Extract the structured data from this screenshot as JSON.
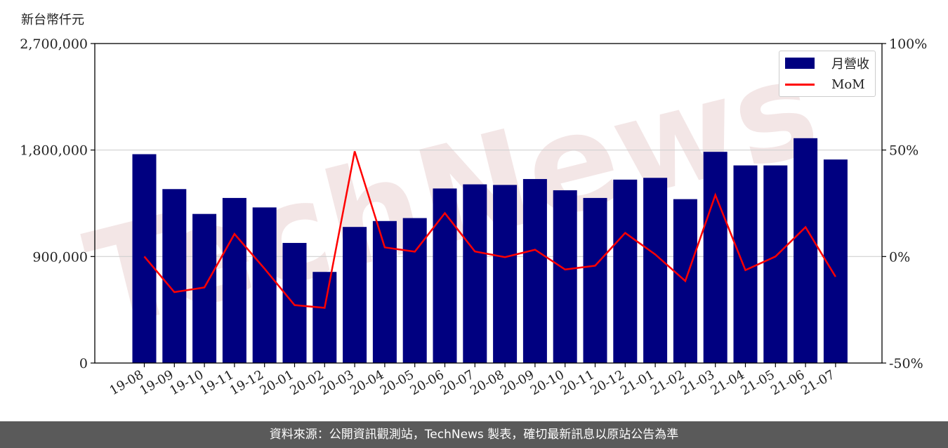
{
  "unit_label": "新台幣仟元",
  "footer_text": "資料來源：公開資訊觀測站，TechNews 製表，確切最新訊息以原站公告為準",
  "watermark_text": "TechNews",
  "colors": {
    "bar": "#000080",
    "line": "#ff0000",
    "grid": "#d0d0d0",
    "footer_bg": "#5a5a5a"
  },
  "chart_data": {
    "type": "bar",
    "categories": [
      "19-08",
      "19-09",
      "19-10",
      "19-11",
      "19-12",
      "20-01",
      "20-02",
      "20-03",
      "20-04",
      "20-05",
      "20-06",
      "20-07",
      "20-08",
      "20-09",
      "20-10",
      "20-11",
      "20-12",
      "21-01",
      "21-02",
      "21-03",
      "21-04",
      "21-05",
      "21-06",
      "21-07"
    ],
    "series": [
      {
        "name": "月營收",
        "type": "bar",
        "axis": "left",
        "values": [
          1765000,
          1470000,
          1260000,
          1395000,
          1315000,
          1015000,
          770000,
          1150000,
          1200000,
          1225000,
          1475000,
          1510000,
          1505000,
          1555000,
          1460000,
          1395000,
          1550000,
          1565000,
          1385000,
          1785000,
          1670000,
          1670000,
          1900000,
          1720000
        ]
      },
      {
        "name": "MoM",
        "type": "line",
        "axis": "right",
        "values": [
          0,
          -16.7,
          -14.5,
          10.6,
          -5.7,
          -22.8,
          -24.1,
          49.4,
          4.3,
          2.3,
          20.4,
          2.4,
          -0.3,
          3.2,
          -6.1,
          -4.3,
          11.1,
          1.0,
          -11.5,
          28.9,
          -6.4,
          0.0,
          13.8,
          -9.5
        ]
      }
    ],
    "y_left": {
      "lim": [
        0,
        2700000
      ],
      "ticks": [
        "0",
        "900,000",
        "1,800,000",
        "2,700,000"
      ],
      "tick_values": [
        0,
        900000,
        1800000,
        2700000
      ]
    },
    "y_right": {
      "lim": [
        -50,
        100
      ],
      "ticks": [
        "-50%",
        "0%",
        "50%",
        "100%"
      ],
      "tick_values": [
        -50,
        0,
        50,
        100
      ]
    },
    "grid": "horizontal",
    "legend_position": "top-right"
  }
}
